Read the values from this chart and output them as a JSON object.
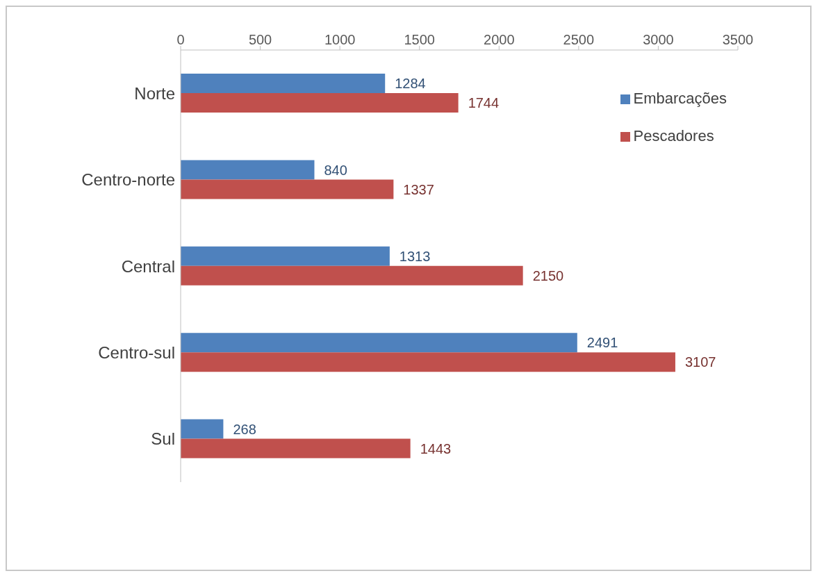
{
  "chart_data": {
    "type": "bar",
    "orientation": "horizontal",
    "categories": [
      "Norte",
      "Centro-norte",
      "Central",
      "Centro-sul",
      "Sul"
    ],
    "series": [
      {
        "name": "Embarcações",
        "color": "#4f81bd",
        "values": [
          1284,
          840,
          1313,
          2491,
          268
        ]
      },
      {
        "name": "Pescadores",
        "color": "#c0504d",
        "values": [
          1744,
          1337,
          2150,
          3107,
          1443
        ]
      }
    ],
    "xlim": [
      0,
      3500
    ],
    "xticks": [
      0,
      500,
      1000,
      1500,
      2000,
      2500,
      3000,
      3500
    ],
    "legend": "top right",
    "data_labels": true
  }
}
